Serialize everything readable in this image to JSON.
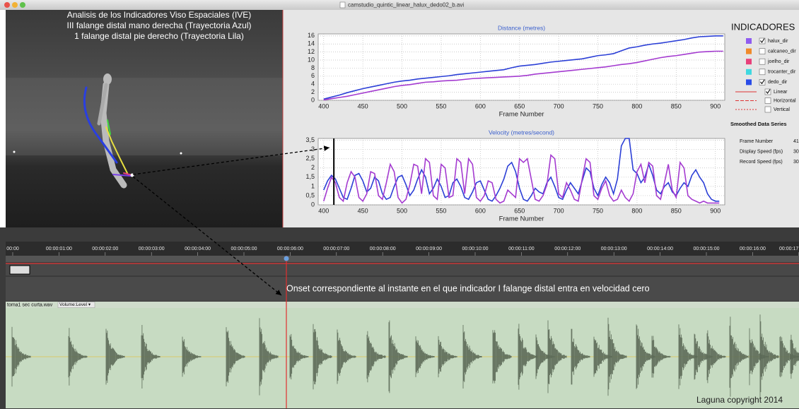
{
  "window": {
    "title": "camstudio_quintic_linear_halux_dedo02_b.avi"
  },
  "video": {
    "overlay": [
      "Analisis de los Indicadores Viso Espaciales (IVE)",
      "III falange distal mano derecha (Trayectoria Azul)",
      "1 falange distal pie derecho (Trayectoria Lila)"
    ]
  },
  "chart_data": [
    {
      "type": "line",
      "title": "Distance (metres)",
      "title_color": "#3a5fcd",
      "x_label": "Frame Number",
      "x": [
        400,
        410,
        420,
        430,
        440,
        450,
        460,
        470,
        480,
        490,
        500,
        510,
        520,
        530,
        540,
        550,
        560,
        570,
        580,
        590,
        600,
        610,
        620,
        630,
        640,
        650,
        660,
        670,
        680,
        690,
        700,
        710,
        720,
        730,
        740,
        750,
        760,
        770,
        780,
        790,
        800,
        810,
        820,
        830,
        840,
        850,
        860,
        870,
        880,
        890,
        900,
        910
      ],
      "series": [
        {
          "color": "#2b3fd6",
          "values": [
            0.3,
            0.8,
            1.3,
            1.9,
            2.4,
            2.9,
            3.3,
            3.7,
            4.1,
            4.5,
            4.8,
            5.0,
            5.3,
            5.5,
            5.7,
            5.9,
            6.1,
            6.4,
            6.6,
            6.8,
            7.0,
            7.2,
            7.4,
            7.6,
            8.1,
            8.5,
            8.7,
            8.9,
            9.2,
            9.5,
            9.7,
            9.9,
            10.1,
            10.3,
            10.7,
            11.1,
            11.3,
            11.6,
            12.3,
            13.0,
            13.3,
            13.7,
            14.0,
            14.2,
            14.5,
            14.8,
            15.1,
            15.5,
            15.8,
            15.9,
            16.0,
            16.0
          ]
        },
        {
          "color": "#a43bd0",
          "values": [
            0.1,
            0.4,
            0.7,
            1.0,
            1.4,
            1.8,
            2.2,
            2.6,
            3.0,
            3.4,
            3.7,
            3.9,
            4.2,
            4.5,
            4.6,
            4.8,
            4.9,
            5.0,
            5.2,
            5.4,
            5.5,
            5.6,
            5.7,
            5.8,
            5.9,
            6.0,
            6.2,
            6.5,
            6.7,
            6.9,
            7.1,
            7.3,
            7.5,
            7.7,
            7.9,
            8.1,
            8.3,
            8.6,
            8.9,
            9.1,
            9.4,
            9.8,
            10.2,
            10.6,
            10.9,
            11.1,
            11.4,
            11.7,
            12.0,
            12.1,
            12.2,
            12.2
          ]
        }
      ],
      "xlim": [
        393,
        912
      ],
      "ylim": [
        0,
        16.5
      ],
      "xticks": [
        400,
        450,
        500,
        550,
        600,
        650,
        700,
        750,
        800,
        850,
        900
      ],
      "yticks": [
        0,
        2,
        4,
        6,
        8,
        10,
        12,
        14,
        16
      ],
      "grid": true
    },
    {
      "type": "line",
      "title": "Velocity (metres/second)",
      "title_color": "#3a5fcd",
      "x_label": "Frame Number",
      "x": [
        400,
        405,
        410,
        415,
        420,
        425,
        430,
        435,
        440,
        445,
        450,
        455,
        460,
        465,
        470,
        475,
        480,
        485,
        490,
        495,
        500,
        505,
        510,
        515,
        520,
        525,
        530,
        535,
        540,
        545,
        550,
        555,
        560,
        565,
        570,
        575,
        580,
        585,
        590,
        595,
        600,
        605,
        610,
        615,
        620,
        625,
        630,
        635,
        640,
        645,
        650,
        655,
        660,
        665,
        670,
        675,
        680,
        685,
        690,
        695,
        700,
        705,
        710,
        715,
        720,
        725,
        730,
        735,
        740,
        745,
        750,
        755,
        760,
        765,
        770,
        775,
        780,
        785,
        790,
        795,
        800,
        805,
        810,
        815,
        820,
        825,
        830,
        835,
        840,
        845,
        850,
        855,
        860,
        865,
        870,
        875,
        880,
        885,
        890,
        895,
        900,
        905
      ],
      "series": [
        {
          "color": "#2b3fd6",
          "values": [
            0.8,
            1.3,
            1.6,
            1.4,
            0.9,
            0.4,
            0.3,
            0.9,
            1.6,
            1.7,
            1.3,
            0.7,
            0.9,
            1.5,
            1.3,
            0.6,
            0.3,
            0.4,
            1.0,
            1.5,
            1.6,
            1.1,
            0.5,
            0.8,
            1.4,
            1.9,
            1.5,
            0.6,
            0.9,
            1.4,
            1.0,
            0.4,
            0.5,
            1.2,
            1.4,
            1.0,
            0.4,
            0.3,
            0.7,
            1.2,
            1.3,
            0.8,
            0.3,
            0.2,
            0.5,
            0.9,
            1.4,
            2.1,
            2.3,
            1.8,
            0.9,
            0.3,
            0.2,
            0.5,
            0.9,
            0.7,
            0.6,
            1.2,
            1.5,
            1.0,
            0.4,
            0.3,
            0.8,
            1.2,
            0.9,
            0.6,
            1.3,
            2.0,
            1.8,
            0.9,
            0.5,
            1.1,
            1.5,
            1.2,
            0.6,
            1.4,
            3.2,
            3.6,
            3.6,
            1.9,
            1.7,
            1.2,
            1.5,
            2.2,
            1.6,
            0.8,
            0.6,
            1.0,
            1.2,
            0.7,
            0.5,
            0.9,
            1.2,
            1.0,
            1.6,
            1.9,
            1.5,
            1.2,
            0.6,
            0.3,
            0.2,
            0.2
          ]
        },
        {
          "color": "#a43bd0",
          "values": [
            0.2,
            0.9,
            1.5,
            1.2,
            0.4,
            0.2,
            1.2,
            1.8,
            1.5,
            0.4,
            0.2,
            0.6,
            1.8,
            1.7,
            0.5,
            0.3,
            1.2,
            2.2,
            1.8,
            0.4,
            0.1,
            0.3,
            1.1,
            2.2,
            2.1,
            0.6,
            2.5,
            2.3,
            0.5,
            0.3,
            2.2,
            2.0,
            0.4,
            0.5,
            2.5,
            2.3,
            0.6,
            2.5,
            2.2,
            0.4,
            0.2,
            0.5,
            1.3,
            1.2,
            0.3,
            0.1,
            0.2,
            0.8,
            0.6,
            0.4,
            2.5,
            2.3,
            2.5,
            1.4,
            0.3,
            0.2,
            0.5,
            1.1,
            2.7,
            2.5,
            0.6,
            0.4,
            1.2,
            0.8,
            0.3,
            0.2,
            1.4,
            2.5,
            2.3,
            0.5,
            0.3,
            0.9,
            1.3,
            0.5,
            0.2,
            0.3,
            0.8,
            0.4,
            0.2,
            0.6,
            1.8,
            2.2,
            1.2,
            2.3,
            2.1,
            0.5,
            0.3,
            1.2,
            2.2,
            0.8,
            0.4,
            2.3,
            2.0,
            0.5,
            0.3,
            0.2,
            0.1,
            0.2,
            0.1,
            0.1,
            0.1,
            0.1
          ]
        }
      ],
      "xlim": [
        393,
        912
      ],
      "ylim": [
        0,
        3.6
      ],
      "xticks": [
        400,
        450,
        500,
        550,
        600,
        650,
        700,
        750,
        800,
        850,
        900
      ],
      "yticks": [
        0,
        {
          "value": 0.5,
          "label": "0,5"
        },
        1,
        {
          "value": 1.5,
          "label": "1,5"
        },
        2,
        {
          "value": 2.5,
          "label": "2,5"
        },
        3,
        {
          "value": 3.5,
          "label": "3,5"
        }
      ],
      "grid": true,
      "marker_x": 413
    }
  ],
  "legend_panel": {
    "title": "INDICADORES",
    "items": [
      {
        "label": "halux_dir",
        "color": "#8f5cf0",
        "checked": true
      },
      {
        "label": "calcaneo_dir",
        "color": "#f08a2a",
        "checked": false
      },
      {
        "label": "joelho_dir",
        "color": "#e8407a",
        "checked": false
      },
      {
        "label": "trocanter_dir",
        "color": "#3fd8e0",
        "checked": false
      },
      {
        "label": "dedo_dir",
        "color": "#2a4ce8",
        "checked": true
      }
    ],
    "line_styles": [
      {
        "label": "Linear",
        "checked": true
      },
      {
        "label": "Horizontal",
        "checked": false
      },
      {
        "label": "Vertical",
        "checked": false
      }
    ],
    "smoothed_title": "Smoothed Data Series",
    "fields": [
      {
        "label": "Frame Number",
        "value": "41"
      },
      {
        "label": "Display Speed (fps)",
        "value": "30"
      },
      {
        "label": "Record Speed (fps)",
        "value": "30"
      }
    ]
  },
  "timeline": {
    "labels": [
      "00:00",
      "00:00:01:00",
      "00:00:02:00",
      "00:00:03:00",
      "00:00:04:00",
      "00:00:05:00",
      "00:00:06:00",
      "00:00:07:00",
      "00:00:08:00",
      "00:00:09:00",
      "00:00:10:00",
      "00:00:11:00",
      "00:00:12:00",
      "00:00:13:00",
      "00:00:14:00",
      "00:00:15:00",
      "00:00:16:00",
      "00:00:17"
    ],
    "annotation": "Onset correspondiente al instante en el que indicador I falange distal entra en velocidad cero",
    "track_name": "toma1 sec curta.wav",
    "track_menu": "Volume:Level ▾",
    "copyright": "Laguna copyright 2014"
  }
}
